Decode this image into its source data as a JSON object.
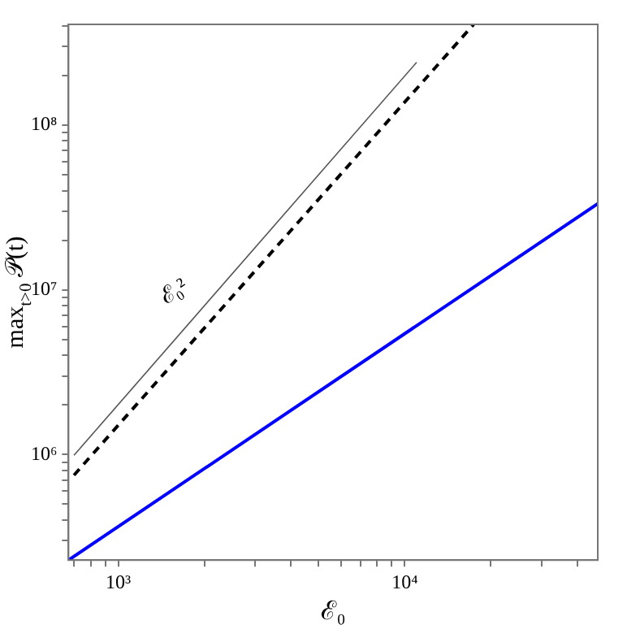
{
  "chart_data": {
    "type": "line",
    "xlabel": "ℰ₀",
    "ylabel": "max$_{t>0}$ 𝒫(t)",
    "log": "xy",
    "grid": false,
    "legend": false,
    "marker": "none",
    "xlim": [
      670,
      47200
    ],
    "ylim": [
      229000,
      408000000
    ],
    "xticks": [
      {
        "value": 700,
        "label": null
      },
      {
        "value": 800,
        "label": null
      },
      {
        "value": 900,
        "label": null
      },
      {
        "value": 1000,
        "label": "10³"
      },
      {
        "value": 2000,
        "label": null
      },
      {
        "value": 3000,
        "label": null
      },
      {
        "value": 4000,
        "label": null
      },
      {
        "value": 5000,
        "label": null
      },
      {
        "value": 6000,
        "label": null
      },
      {
        "value": 7000,
        "label": null
      },
      {
        "value": 8000,
        "label": null
      },
      {
        "value": 9000,
        "label": null
      },
      {
        "value": 10000,
        "label": "10⁴"
      },
      {
        "value": 20000,
        "label": null
      },
      {
        "value": 30000,
        "label": null
      },
      {
        "value": 40000,
        "label": null
      }
    ],
    "yticks": [
      {
        "value": 300000,
        "label": null
      },
      {
        "value": 400000,
        "label": null
      },
      {
        "value": 500000,
        "label": null
      },
      {
        "value": 600000,
        "label": null
      },
      {
        "value": 700000,
        "label": null
      },
      {
        "value": 800000,
        "label": null
      },
      {
        "value": 900000,
        "label": null
      },
      {
        "value": 1000000,
        "label": "10⁶"
      },
      {
        "value": 2000000,
        "label": null
      },
      {
        "value": 3000000,
        "label": null
      },
      {
        "value": 4000000,
        "label": null
      },
      {
        "value": 5000000,
        "label": null
      },
      {
        "value": 6000000,
        "label": null
      },
      {
        "value": 7000000,
        "label": null
      },
      {
        "value": 8000000,
        "label": null
      },
      {
        "value": 9000000,
        "label": null
      },
      {
        "value": 10000000,
        "label": "10⁷"
      },
      {
        "value": 20000000,
        "label": null
      },
      {
        "value": 30000000,
        "label": null
      },
      {
        "value": 40000000,
        "label": null
      },
      {
        "value": 50000000,
        "label": null
      },
      {
        "value": 60000000,
        "label": null
      },
      {
        "value": 70000000,
        "label": null
      },
      {
        "value": 80000000,
        "label": null
      },
      {
        "value": 90000000,
        "label": null
      },
      {
        "value": 100000000,
        "label": "10⁸"
      },
      {
        "value": 200000000,
        "label": null
      },
      {
        "value": 300000000,
        "label": null
      },
      {
        "value": 400000000,
        "label": null
      }
    ],
    "series": [
      {
        "color": "#555555",
        "line_style": "solid",
        "x": [
          700,
          11000
        ],
        "values": [
          990000,
          240000000
        ]
      },
      {
        "color": "#000000",
        "line_style": "dashed",
        "x": [
          700,
          17400
        ],
        "values": [
          750000,
          408000000
        ]
      },
      {
        "color": "#0000ff",
        "line_style": "solid",
        "x": [
          670,
          47200
        ],
        "values": [
          229000,
          33300000
        ]
      }
    ],
    "annotations": [
      "ℰ₀²"
    ]
  }
}
